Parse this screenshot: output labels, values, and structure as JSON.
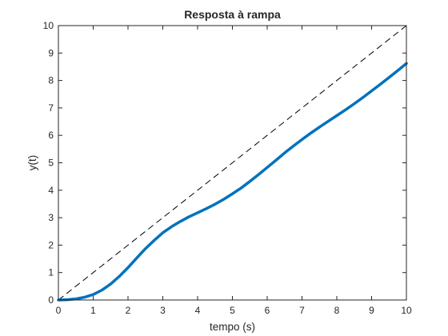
{
  "chart_data": {
    "type": "line",
    "title": "Resposta à rampa",
    "xlabel": "tempo (s)",
    "ylabel": "y(t)",
    "xlim": [
      0,
      10
    ],
    "ylim": [
      0,
      10
    ],
    "xticks": [
      0,
      1,
      2,
      3,
      4,
      5,
      6,
      7,
      8,
      9,
      10
    ],
    "yticks": [
      0,
      1,
      2,
      3,
      4,
      5,
      6,
      7,
      8,
      9,
      10
    ],
    "grid": false,
    "legend": "none",
    "series": [
      {
        "style": "solid",
        "color": "#0072BD",
        "x": [
          0,
          0.25,
          0.5,
          0.75,
          1.0,
          1.25,
          1.5,
          1.75,
          2.0,
          2.25,
          2.5,
          2.75,
          3.0,
          3.25,
          3.5,
          3.75,
          4.0,
          4.25,
          4.5,
          4.75,
          5.0,
          5.25,
          5.5,
          5.75,
          6.0,
          6.25,
          6.5,
          6.75,
          7.0,
          7.25,
          7.5,
          7.75,
          8.0,
          8.25,
          8.5,
          8.75,
          9.0,
          9.25,
          9.5,
          9.75,
          10.0
        ],
        "y": [
          0,
          0.01,
          0.04,
          0.1,
          0.2,
          0.36,
          0.58,
          0.86,
          1.18,
          1.53,
          1.87,
          2.17,
          2.45,
          2.67,
          2.86,
          3.03,
          3.18,
          3.33,
          3.49,
          3.67,
          3.87,
          4.08,
          4.32,
          4.57,
          4.83,
          5.09,
          5.36,
          5.61,
          5.85,
          6.08,
          6.3,
          6.51,
          6.72,
          6.93,
          7.15,
          7.38,
          7.62,
          7.86,
          8.11,
          8.36,
          8.62
        ]
      },
      {
        "style": "dashed",
        "color": "#000000",
        "x": [
          0,
          10
        ],
        "y": [
          0,
          10
        ]
      }
    ]
  }
}
